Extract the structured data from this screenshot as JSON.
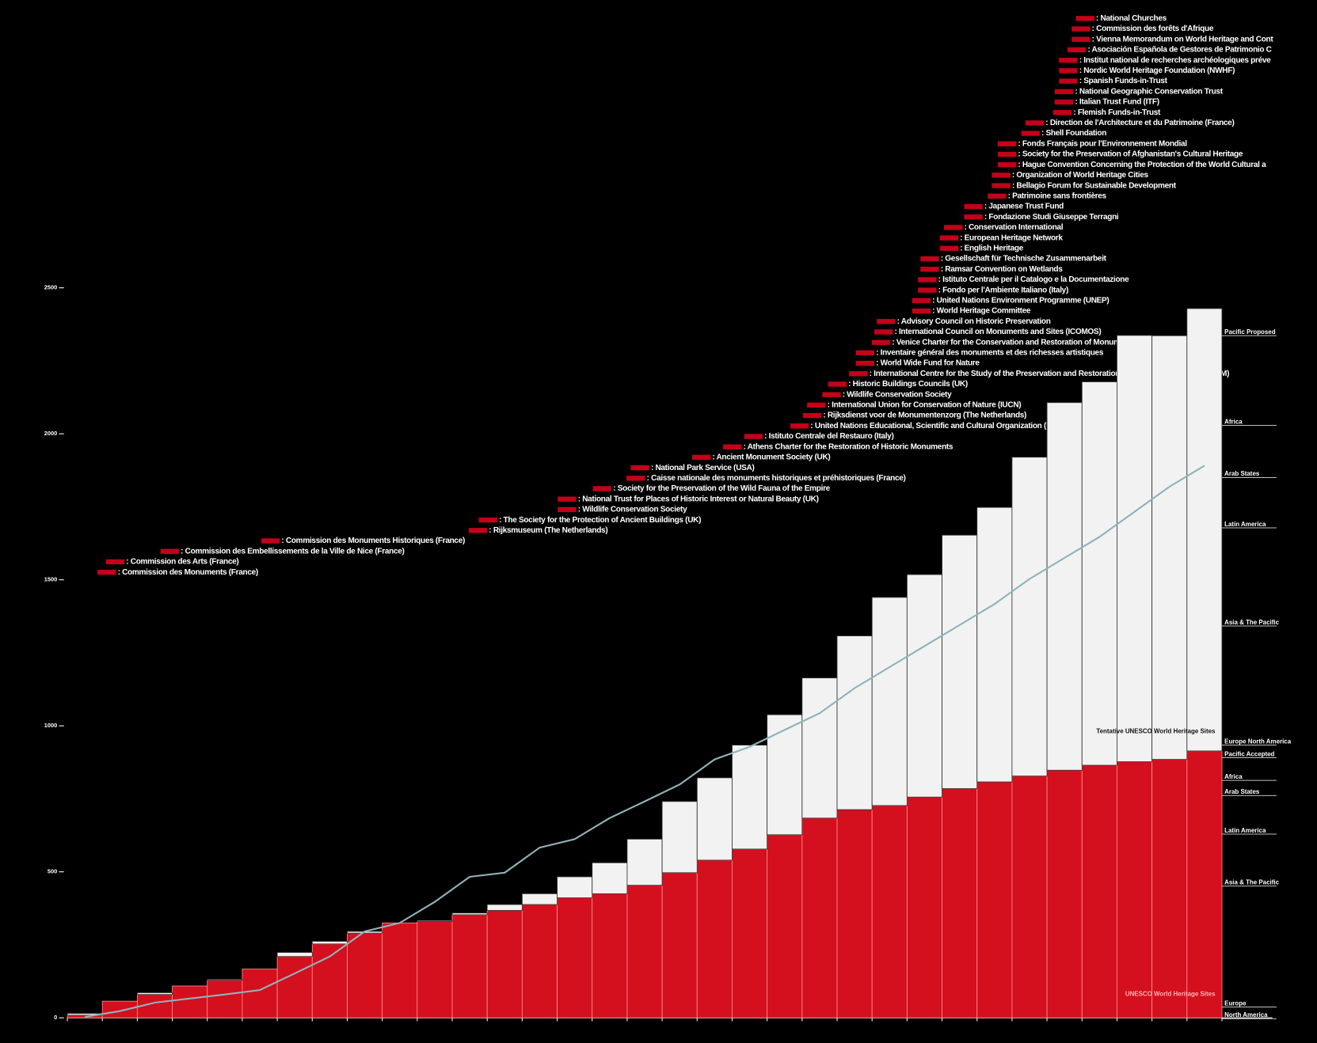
{
  "chart_data": {
    "type": "stacked-bar",
    "categories": [
      null,
      null,
      null,
      null,
      null,
      null,
      null,
      null,
      null,
      null,
      null,
      null,
      null,
      null,
      null,
      null,
      null,
      null,
      null,
      null,
      null,
      null,
      null,
      null,
      null,
      null,
      null,
      null,
      null,
      null,
      null,
      null,
      null
    ],
    "series": [
      {
        "name": "UNESCO World Heritage Sites",
        "color": "#d40f1e",
        "values": [
          9,
          57,
          80,
          109,
          129,
          167,
          210,
          253,
          290,
          325,
          330,
          353,
          368,
          388,
          411,
          425,
          454,
          497,
          540,
          578,
          627,
          684,
          713,
          727,
          756,
          785,
          808,
          828,
          848,
          865,
          877,
          885,
          914
        ]
      },
      {
        "name": "Tentative UNESCO World Heritage Sites",
        "color": "#f2f2f2",
        "values": [
          6,
          0,
          6,
          0,
          3,
          0,
          14,
          9,
          6,
          0,
          3,
          6,
          20,
          37,
          72,
          106,
          158,
          244,
          282,
          356,
          411,
          480,
          595,
          713,
          762,
          868,
          940,
          1092,
          1259,
          1313,
          1460,
          1451,
          1515
        ]
      },
      {
        "type": "line",
        "color": "#8fb3bb",
        "values": [
          3,
          23,
          52,
          66,
          80,
          95,
          152,
          210,
          296,
          325,
          397,
          483,
          497,
          583,
          612,
          684,
          741,
          799,
          885,
          928,
          986,
          1043,
          1129,
          1201,
          1273,
          1345,
          1417,
          1503,
          1575,
          1647,
          1733,
          1819,
          1891
        ]
      }
    ],
    "ylim": [
      0,
      2500
    ],
    "yticks": [
      0,
      500,
      1000,
      1500,
      2000,
      2500
    ],
    "annotations": [
      ": National Churches",
      ": Commission des forêts d'Afrique",
      ": Vienna Memorandum on World Heritage and Cont",
      ": Asociación Española de Gestores de Patrimonio C",
      ": Institut national de recherches archéologiques préve",
      ": Nordic World Heritage Foundation (NWHF)",
      ": Spanish Funds-in-Trust",
      ": National Geographic Conservation Trust",
      ": Italian Trust Fund (ITF)",
      ": Flemish Funds-in-Trust",
      ": Direction de l'Architecture et du Patrimoine (France)",
      ": Shell Foundation",
      ": Fonds Français pour l'Environnement Mondial",
      ": Society for the Preservation of Afghanistan's Cultural Heritage",
      ": Hague Convention Concerning the Protection of the World Cultural a",
      ": Organization of World Heritage Cities",
      ": Bellagio Forum for Sustainable Development",
      ": Patrimoine sans frontières",
      ": Japanese Trust Fund",
      ": Fondazione Studi Giuseppe Terragni",
      ": Conservation International",
      ": European Heritage Network",
      ": English Heritage",
      ": Gesellschaft für Technische Zusammenarbeit",
      ": Ramsar Convention on Wetlands",
      ": Istituto Centrale per il Catalogo e la Documentazione",
      ": Fondo per l'Ambiente Italiano (Italy)",
      ": United Nations Environment Programme (UNEP)",
      ": World Heritage Committee",
      ": Advisory Council on Historic Preservation",
      ": International Council on Monuments and Sites (ICOMOS)",
      ": Venice Charter for the Conservation and Restoration of Monuments",
      ": Inventaire général des monuments et des richesses artistiques",
      ": World Wide Fund for Nature",
      ": International Centre for the Study of the Preservation and Restoration of Cultural Property (ICCROM)",
      ": Historic Buildings Councils (UK)",
      ": Wildlife Conservation Society",
      ": International Union for Conservation of Nature (IUCN)",
      ": Rijksdienst voor de Monumentenzorg (The Netherlands)",
      ": United Nations Educational, Scientific and Cultural Organization (UNESCO)",
      ": Istituto Centrale del Restauro (Italy)",
      ": Athens Charter for the Restoration of Historic Monuments",
      ": Ancient Monument Society (UK)",
      ": National Park Service (USA)",
      ": Caisse nationale des monuments historiques et préhistoriques (France)",
      ": Society for the Preservation of the Wild Fauna of the Empire",
      ": National Trust for Places of Historic Interest or Natural Beauty (UK)",
      ": Wildlife Conservation Society",
      ": The Society for the Protection of Ancient Buildings (UK)",
      ": Rijksmuseum (The Netherlands)",
      ": Commission des Monuments Historiques (France)",
      ": Commission des Embellissements de la Ville de Nice (France)",
      ": Commission des Arts (France)",
      ": Commission des Monuments (France)"
    ],
    "regions_tentative": [
      "Pacific Proposed",
      "Africa",
      "Arab States",
      "Latin America",
      "Asia & The Pacific",
      "Europe North America",
      "Pacific Accepted"
    ],
    "regions_inscribed": [
      "Africa",
      "Arab States",
      "Latin America",
      "Asia & The Pacific",
      "Europe",
      "North America"
    ]
  }
}
